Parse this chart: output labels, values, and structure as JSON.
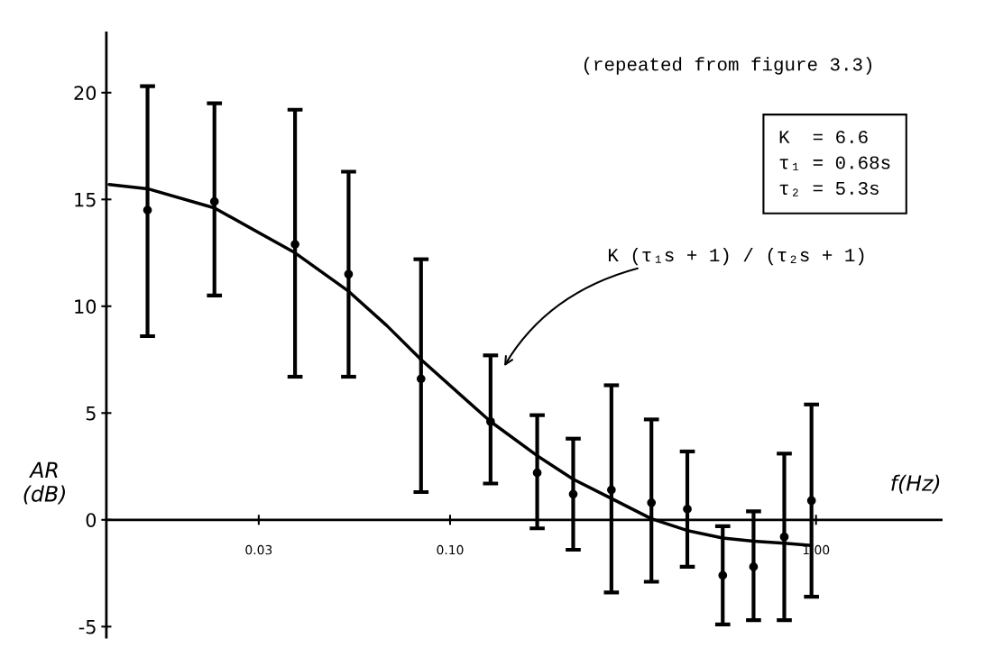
{
  "chart_data": {
    "type": "scatter",
    "xlabel": "f(Hz)",
    "ylabel": "AR\n(dB)",
    "log": "x",
    "x": [
      0.0149,
      0.0227,
      0.0377,
      0.0528,
      0.0833,
      0.129,
      0.173,
      0.217,
      0.276,
      0.355,
      0.445,
      0.556,
      0.675,
      0.819,
      0.972
    ],
    "series": [
      {
        "type": "scatter",
        "color": "#000000",
        "marker": "circle",
        "values": [
          14.5,
          14.9,
          12.9,
          11.5,
          6.6,
          4.6,
          2.2,
          1.2,
          1.4,
          0.8,
          0.5,
          -2.6,
          -2.2,
          -0.8,
          0.9
        ],
        "errors": [
          [
            8.6,
            20.3
          ],
          [
            10.5,
            19.5
          ],
          [
            6.7,
            19.2
          ],
          [
            6.7,
            16.3
          ],
          [
            1.3,
            12.2
          ],
          [
            1.7,
            7.7
          ],
          [
            -0.4,
            4.9
          ],
          [
            -1.4,
            3.8
          ],
          [
            -3.4,
            6.3
          ],
          [
            -2.9,
            4.7
          ],
          [
            -2.2,
            3.2
          ],
          [
            -4.9,
            -0.3
          ],
          [
            -4.7,
            0.4
          ],
          [
            -4.7,
            3.1
          ],
          [
            -3.6,
            5.4
          ]
        ]
      },
      {
        "type": "line",
        "color": "#000000",
        "line_style": "solid",
        "x": [
          0.0117,
          0.0149,
          0.0227,
          0.0377,
          0.0528,
          0.0671,
          0.0833,
          0.129,
          0.173,
          0.217,
          0.276,
          0.355,
          0.445,
          0.556,
          0.675,
          0.819,
          0.972
        ],
        "values": [
          15.7,
          15.5,
          14.6,
          12.5,
          10.7,
          9.1,
          7.5,
          4.6,
          3.0,
          1.9,
          1.0,
          0.05,
          -0.5,
          -0.85,
          -1.0,
          -1.1,
          -1.2
        ]
      }
    ],
    "xlim": [
      0.0115,
      2.2
    ],
    "ylim": [
      -5.5,
      22.8
    ],
    "xticks": [
      0.03,
      {
        "value": 0.1,
        "label": "0.10"
      },
      {
        "value": 1,
        "label": "1.00"
      }
    ],
    "yticks": [
      -5,
      0,
      5,
      10,
      15,
      20
    ],
    "grid": false,
    "legend": false,
    "annotations": [
      "(repeated from figure 3.3)",
      "K  = 6.6\nτ₁ = 0.68s\nτ₂ = 5.3s",
      "K (τ₁s + 1) / (τ₂s + 1)"
    ]
  }
}
